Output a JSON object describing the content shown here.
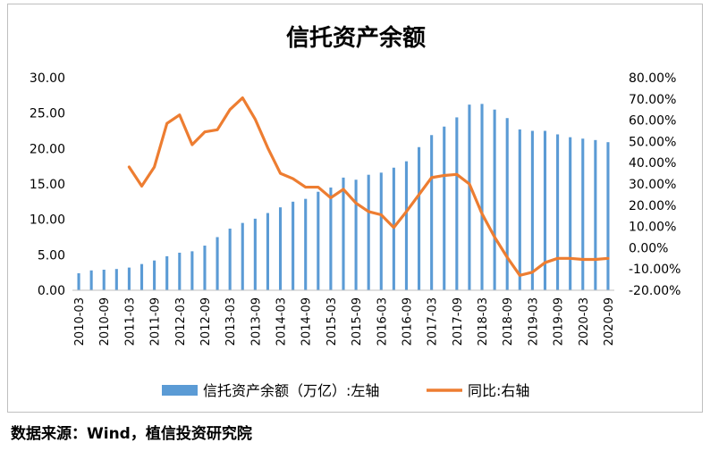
{
  "chart_data": {
    "type": "bar",
    "title": "信托资产余额",
    "categories": [
      "2010-03",
      "2010-06",
      "2010-09",
      "2010-12",
      "2011-03",
      "2011-06",
      "2011-09",
      "2011-12",
      "2012-03",
      "2012-06",
      "2012-09",
      "2012-12",
      "2013-03",
      "2013-06",
      "2013-09",
      "2013-12",
      "2014-03",
      "2014-06",
      "2014-09",
      "2014-12",
      "2015-03",
      "2015-06",
      "2015-09",
      "2015-12",
      "2016-03",
      "2016-06",
      "2016-09",
      "2016-12",
      "2017-03",
      "2017-06",
      "2017-09",
      "2017-12",
      "2018-03",
      "2018-06",
      "2018-09",
      "2018-12",
      "2019-03",
      "2019-06",
      "2019-09",
      "2019-12",
      "2020-03",
      "2020-06",
      "2020-09"
    ],
    "x_tick_labels": [
      "2010-03",
      "2010-09",
      "2011-03",
      "2011-09",
      "2012-03",
      "2012-09",
      "2013-03",
      "2013-09",
      "2014-03",
      "2014-09",
      "2015-03",
      "2015-09",
      "2016-03",
      "2016-09",
      "2017-03",
      "2017-09",
      "2018-03",
      "2018-09",
      "2019-03",
      "2019-09",
      "2020-03",
      "2020-09"
    ],
    "series": [
      {
        "name": "信托资产余额（万亿）:左轴",
        "type": "bar",
        "axis": "left",
        "color": "#5b9bd5",
        "values": [
          2.4,
          2.8,
          2.9,
          3.0,
          3.2,
          3.7,
          4.2,
          4.8,
          5.3,
          5.5,
          6.3,
          7.5,
          8.7,
          9.5,
          10.1,
          10.9,
          11.7,
          12.5,
          12.9,
          13.9,
          14.5,
          15.9,
          15.6,
          16.3,
          16.6,
          17.3,
          18.2,
          20.2,
          21.9,
          23.1,
          24.4,
          26.2,
          26.3,
          25.5,
          24.3,
          22.7,
          22.5,
          22.5,
          22.0,
          21.6,
          21.4,
          21.2,
          20.9
        ]
      },
      {
        "name": "同比:右轴",
        "type": "line",
        "axis": "right",
        "color": "#ed7d31",
        "values": [
          null,
          null,
          null,
          null,
          38.0,
          29.0,
          38.0,
          58.5,
          62.5,
          48.5,
          54.5,
          55.5,
          65.0,
          70.5,
          60.5,
          47.0,
          35.0,
          32.5,
          28.5,
          28.5,
          23.5,
          27.5,
          21.0,
          17.0,
          15.5,
          9.5,
          17.0,
          25.0,
          33.0,
          34.0,
          34.5,
          30.0,
          16.0,
          5.0,
          -4.5,
          -13.0,
          -11.5,
          -7.0,
          -5.0,
          -5.0,
          -5.5,
          -5.5,
          -5.0
        ]
      }
    ],
    "y_left": {
      "min": 0,
      "max": 30,
      "step": 5,
      "tick_labels": [
        "0.00",
        "5.00",
        "10.00",
        "15.00",
        "20.00",
        "25.00",
        "30.00"
      ]
    },
    "y_right": {
      "min": -20,
      "max": 80,
      "step": 10,
      "tick_labels": [
        "-20.00%",
        "-10.00%",
        "0.00%",
        "10.00%",
        "20.00%",
        "30.00%",
        "40.00%",
        "50.00%",
        "60.00%",
        "70.00%",
        "80.00%"
      ]
    },
    "legend": [
      "信托资产余额（万亿）:左轴",
      "同比:右轴"
    ],
    "legend_position": "bottom",
    "grid": false
  },
  "source_note": "数据来源：Wind，植信投资研究院"
}
